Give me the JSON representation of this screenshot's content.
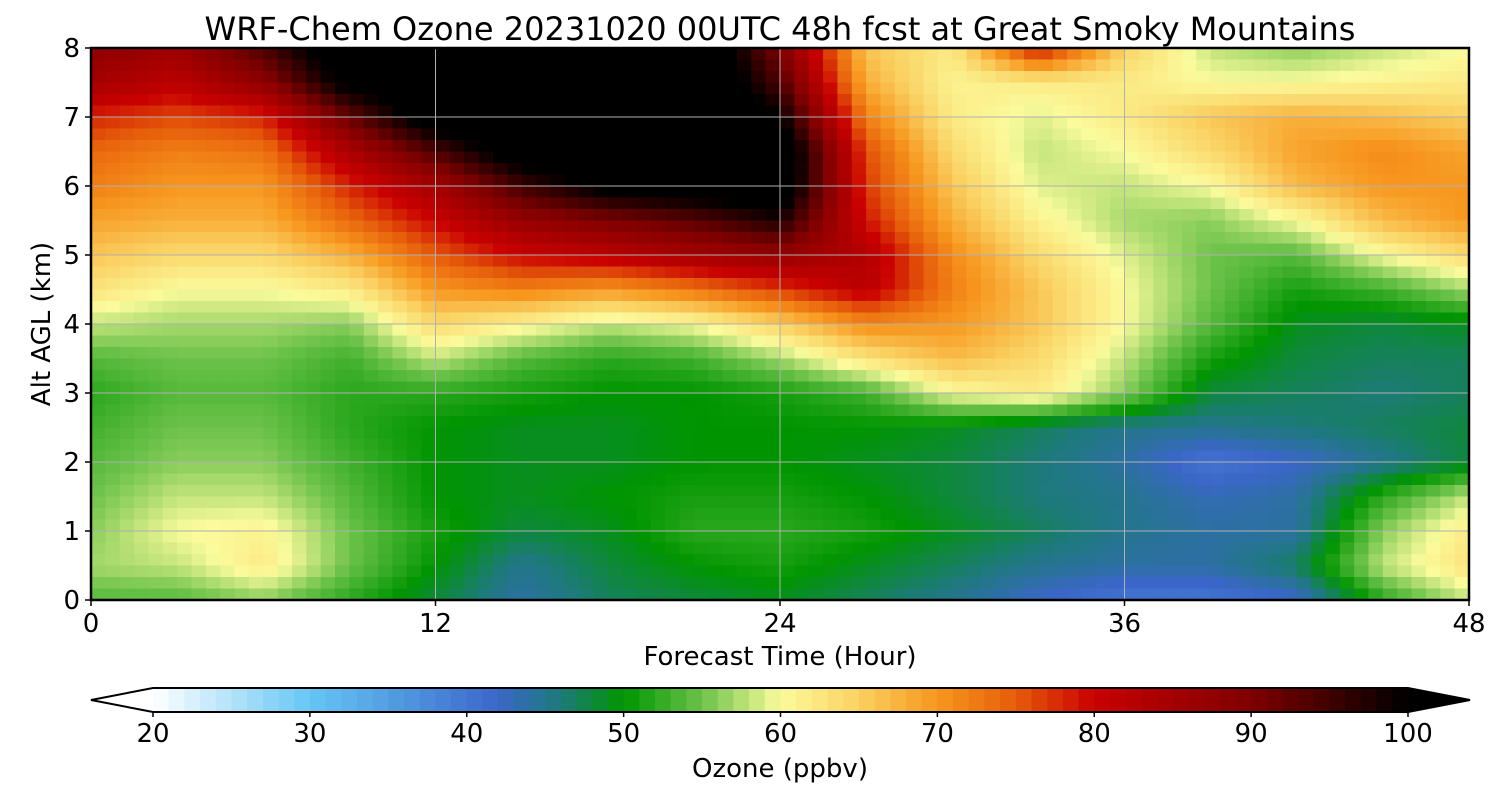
{
  "chart_data": {
    "type": "heatmap",
    "title": "WRF-Chem Ozone  20231020 00UTC 48h fcst at Great Smoky Mountains",
    "xlabel": "Forecast Time (Hour)",
    "ylabel": "Alt AGL (km)",
    "xlim": [
      0,
      48
    ],
    "ylim": [
      0,
      8
    ],
    "xticks": [
      0,
      12,
      24,
      36,
      48
    ],
    "yticks": [
      0,
      1,
      2,
      3,
      4,
      5,
      6,
      7,
      8
    ],
    "grid": true,
    "x": [
      0,
      3,
      6,
      9,
      12,
      15,
      18,
      21,
      24,
      27,
      30,
      33,
      36,
      39,
      42,
      45,
      48
    ],
    "y": [
      0,
      0.5,
      1,
      1.5,
      2,
      2.5,
      3,
      3.5,
      4,
      4.5,
      5,
      5.5,
      6,
      6.5,
      7,
      7.5,
      8
    ],
    "z": [
      [
        54,
        54,
        56,
        52,
        48,
        44,
        47,
        48,
        49,
        47,
        45,
        42,
        40,
        40,
        42,
        52,
        58
      ],
      [
        57,
        58,
        62,
        55,
        50,
        45,
        48,
        50,
        51,
        49,
        47,
        45,
        44,
        44,
        47,
        58,
        63
      ],
      [
        56,
        60,
        61,
        55,
        51,
        48,
        49,
        52,
        52,
        51,
        49,
        47,
        45,
        44,
        44,
        56,
        62
      ],
      [
        55,
        58,
        58,
        54,
        50,
        49,
        50,
        51,
        51,
        50,
        48,
        46,
        45,
        43,
        44,
        52,
        58
      ],
      [
        54,
        56,
        56,
        53,
        50,
        49,
        49,
        50,
        50,
        49,
        48,
        46,
        44,
        40,
        42,
        45,
        48
      ],
      [
        53,
        55,
        55,
        52,
        50,
        49,
        49,
        50,
        50,
        50,
        49,
        47,
        45,
        45,
        46,
        47,
        48
      ],
      [
        52,
        54,
        54,
        52,
        52,
        51,
        50,
        50,
        51,
        53,
        60,
        62,
        56,
        48,
        47,
        46,
        47
      ],
      [
        54,
        55,
        55,
        53,
        58,
        54,
        52,
        53,
        57,
        63,
        67,
        64,
        58,
        51,
        48,
        47,
        47
      ],
      [
        58,
        57,
        57,
        56,
        64,
        61,
        58,
        60,
        65,
        71,
        70,
        66,
        60,
        54,
        49,
        48,
        49
      ],
      [
        63,
        60,
        60,
        62,
        70,
        72,
        70,
        73,
        77,
        82,
        72,
        66,
        60,
        55,
        51,
        53,
        57
      ],
      [
        66,
        64,
        64,
        68,
        75,
        80,
        82,
        85,
        87,
        83,
        71,
        64,
        59,
        55,
        54,
        60,
        64
      ],
      [
        69,
        68,
        68,
        74,
        80,
        87,
        90,
        93,
        98,
        79,
        68,
        61,
        57,
        56,
        60,
        67,
        70
      ],
      [
        72,
        70,
        70,
        78,
        85,
        95,
        102,
        104,
        105,
        77,
        66,
        59,
        58,
        60,
        67,
        70,
        70
      ],
      [
        74,
        72,
        73,
        84,
        94,
        104,
        106,
        106,
        106,
        76,
        64,
        58,
        60,
        64,
        69,
        71,
        69
      ],
      [
        78,
        76,
        78,
        92,
        104,
        107,
        107,
        107,
        100,
        72,
        62,
        59,
        62,
        66,
        68,
        67,
        65
      ],
      [
        85,
        82,
        88,
        102,
        106,
        108,
        108,
        108,
        94,
        68,
        61,
        62,
        62,
        60,
        60,
        61,
        62
      ],
      [
        88,
        86,
        94,
        106,
        107,
        108,
        108,
        108,
        90,
        66,
        62,
        80,
        65,
        58,
        56,
        58,
        60
      ]
    ],
    "colorbar": {
      "label": "Ozone  (ppbv)",
      "min": 20,
      "max": 100,
      "ticks": [
        20,
        30,
        40,
        50,
        60,
        70,
        80,
        90,
        100
      ],
      "extend": "both",
      "orientation": "horizontal",
      "colors": [
        {
          "v": 20,
          "c": "#ffffff"
        },
        {
          "v": 30,
          "c": "#66c6f4"
        },
        {
          "v": 42,
          "c": "#3b66c9"
        },
        {
          "v": 46,
          "c": "#1d7a7a"
        },
        {
          "v": 50,
          "c": "#009500"
        },
        {
          "v": 55,
          "c": "#6cc24a"
        },
        {
          "v": 60,
          "c": "#fbfb9c"
        },
        {
          "v": 65,
          "c": "#fad162"
        },
        {
          "v": 70,
          "c": "#f7971e"
        },
        {
          "v": 75,
          "c": "#e65c0a"
        },
        {
          "v": 80,
          "c": "#c90000"
        },
        {
          "v": 90,
          "c": "#7f0000"
        },
        {
          "v": 100,
          "c": "#000000"
        }
      ]
    }
  }
}
